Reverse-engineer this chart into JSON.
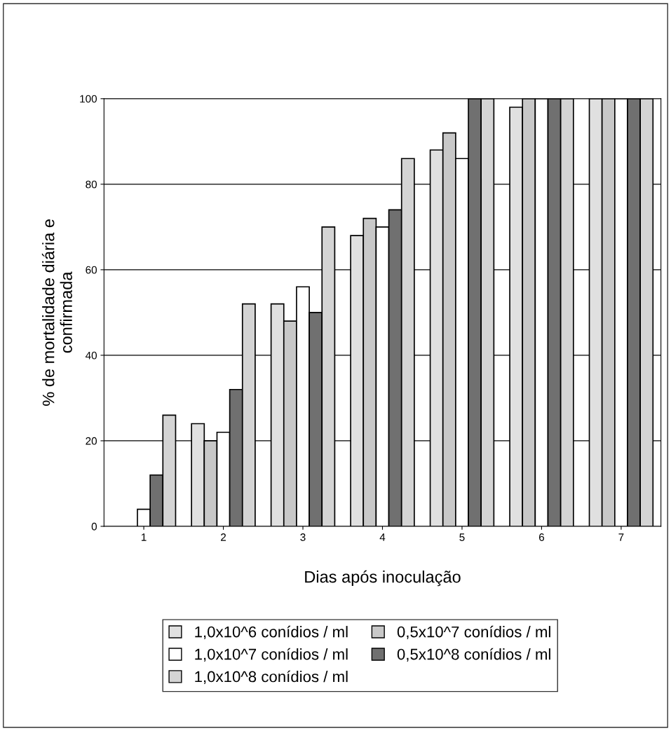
{
  "chart_data": {
    "type": "bar",
    "xlabel": "Dias após inoculação",
    "ylabel": "% de mortalidade diária e\nconfirmada",
    "categories": [
      "1",
      "2",
      "3",
      "4",
      "5",
      "6",
      "7"
    ],
    "series": [
      {
        "name": "1,0x10^6 conídios / ml",
        "color": "#e0e0e0",
        "values": [
          0,
          24,
          52,
          68,
          88,
          98,
          100
        ]
      },
      {
        "name": "1,0x10^7 conídios / ml",
        "color": "#ffffff",
        "values": [
          4,
          22,
          56,
          70,
          86,
          100,
          100
        ]
      },
      {
        "name": "0,5x10^7 conídios / ml",
        "color": "#c8c8c8",
        "values": [
          0,
          20,
          48,
          72,
          92,
          100,
          100
        ]
      },
      {
        "name": "0,5x10^8 conídios / ml",
        "color": "#707070",
        "values": [
          12,
          32,
          50,
          74,
          100,
          100,
          100
        ]
      },
      {
        "name": "1,0x10^8 conídios / ml",
        "color": "#d4d4d4",
        "values": [
          26,
          52,
          70,
          86,
          100,
          100,
          100
        ]
      }
    ],
    "ylim": [
      0,
      100
    ],
    "yticks": [
      0,
      20,
      40,
      60,
      80,
      100
    ],
    "grid": "y",
    "legend": "bottom"
  }
}
